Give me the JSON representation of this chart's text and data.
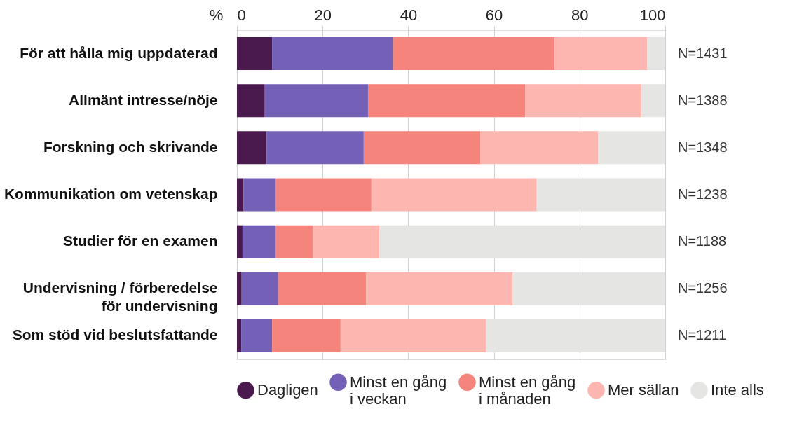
{
  "chart_data": {
    "type": "bar",
    "orientation": "horizontal",
    "stacked": true,
    "xlabel": "%",
    "categories": [
      "För att hålla mig uppdaterad",
      "Allmänt intresse/nöje",
      "Forskning och skrivande",
      "Kommunikation om vetenskap",
      "Studier för en examen",
      "Undervisning / förberedelse\nför undervisning",
      "Som stöd vid beslutsfattande"
    ],
    "series": [
      {
        "name": "Dagligen",
        "color": "#4a1a4e",
        "values": [
          8.2,
          6.5,
          6.9,
          1.5,
          1.3,
          1.1,
          1.0
        ]
      },
      {
        "name": "Minst en gång\ni veckan",
        "color": "#7560b8",
        "values": [
          28.2,
          24.1,
          22.7,
          7.5,
          7.7,
          8.5,
          7.2
        ]
      },
      {
        "name": "Minst en gång\ni månaden",
        "color": "#f5857c",
        "values": [
          37.8,
          36.7,
          27.2,
          22.4,
          8.8,
          20.6,
          16.0
        ]
      },
      {
        "name": "Mer sällan",
        "color": "#fdb6b0",
        "values": [
          21.6,
          27.2,
          27.5,
          38.6,
          15.5,
          34.2,
          34.0
        ]
      },
      {
        "name": "Inte alls",
        "color": "#e5e5e3",
        "values": [
          4.2,
          5.5,
          15.7,
          30.0,
          66.7,
          35.6,
          41.8
        ]
      }
    ],
    "xlim": [
      0,
      100
    ],
    "xticks": [
      0,
      20,
      40,
      60,
      80,
      100
    ],
    "grid": "x",
    "legend": "bottom",
    "annotations": [
      "N=1431",
      "N=1388",
      "N=1348",
      "N=1238",
      "N=1188",
      "N=1256",
      "N=1211"
    ]
  }
}
